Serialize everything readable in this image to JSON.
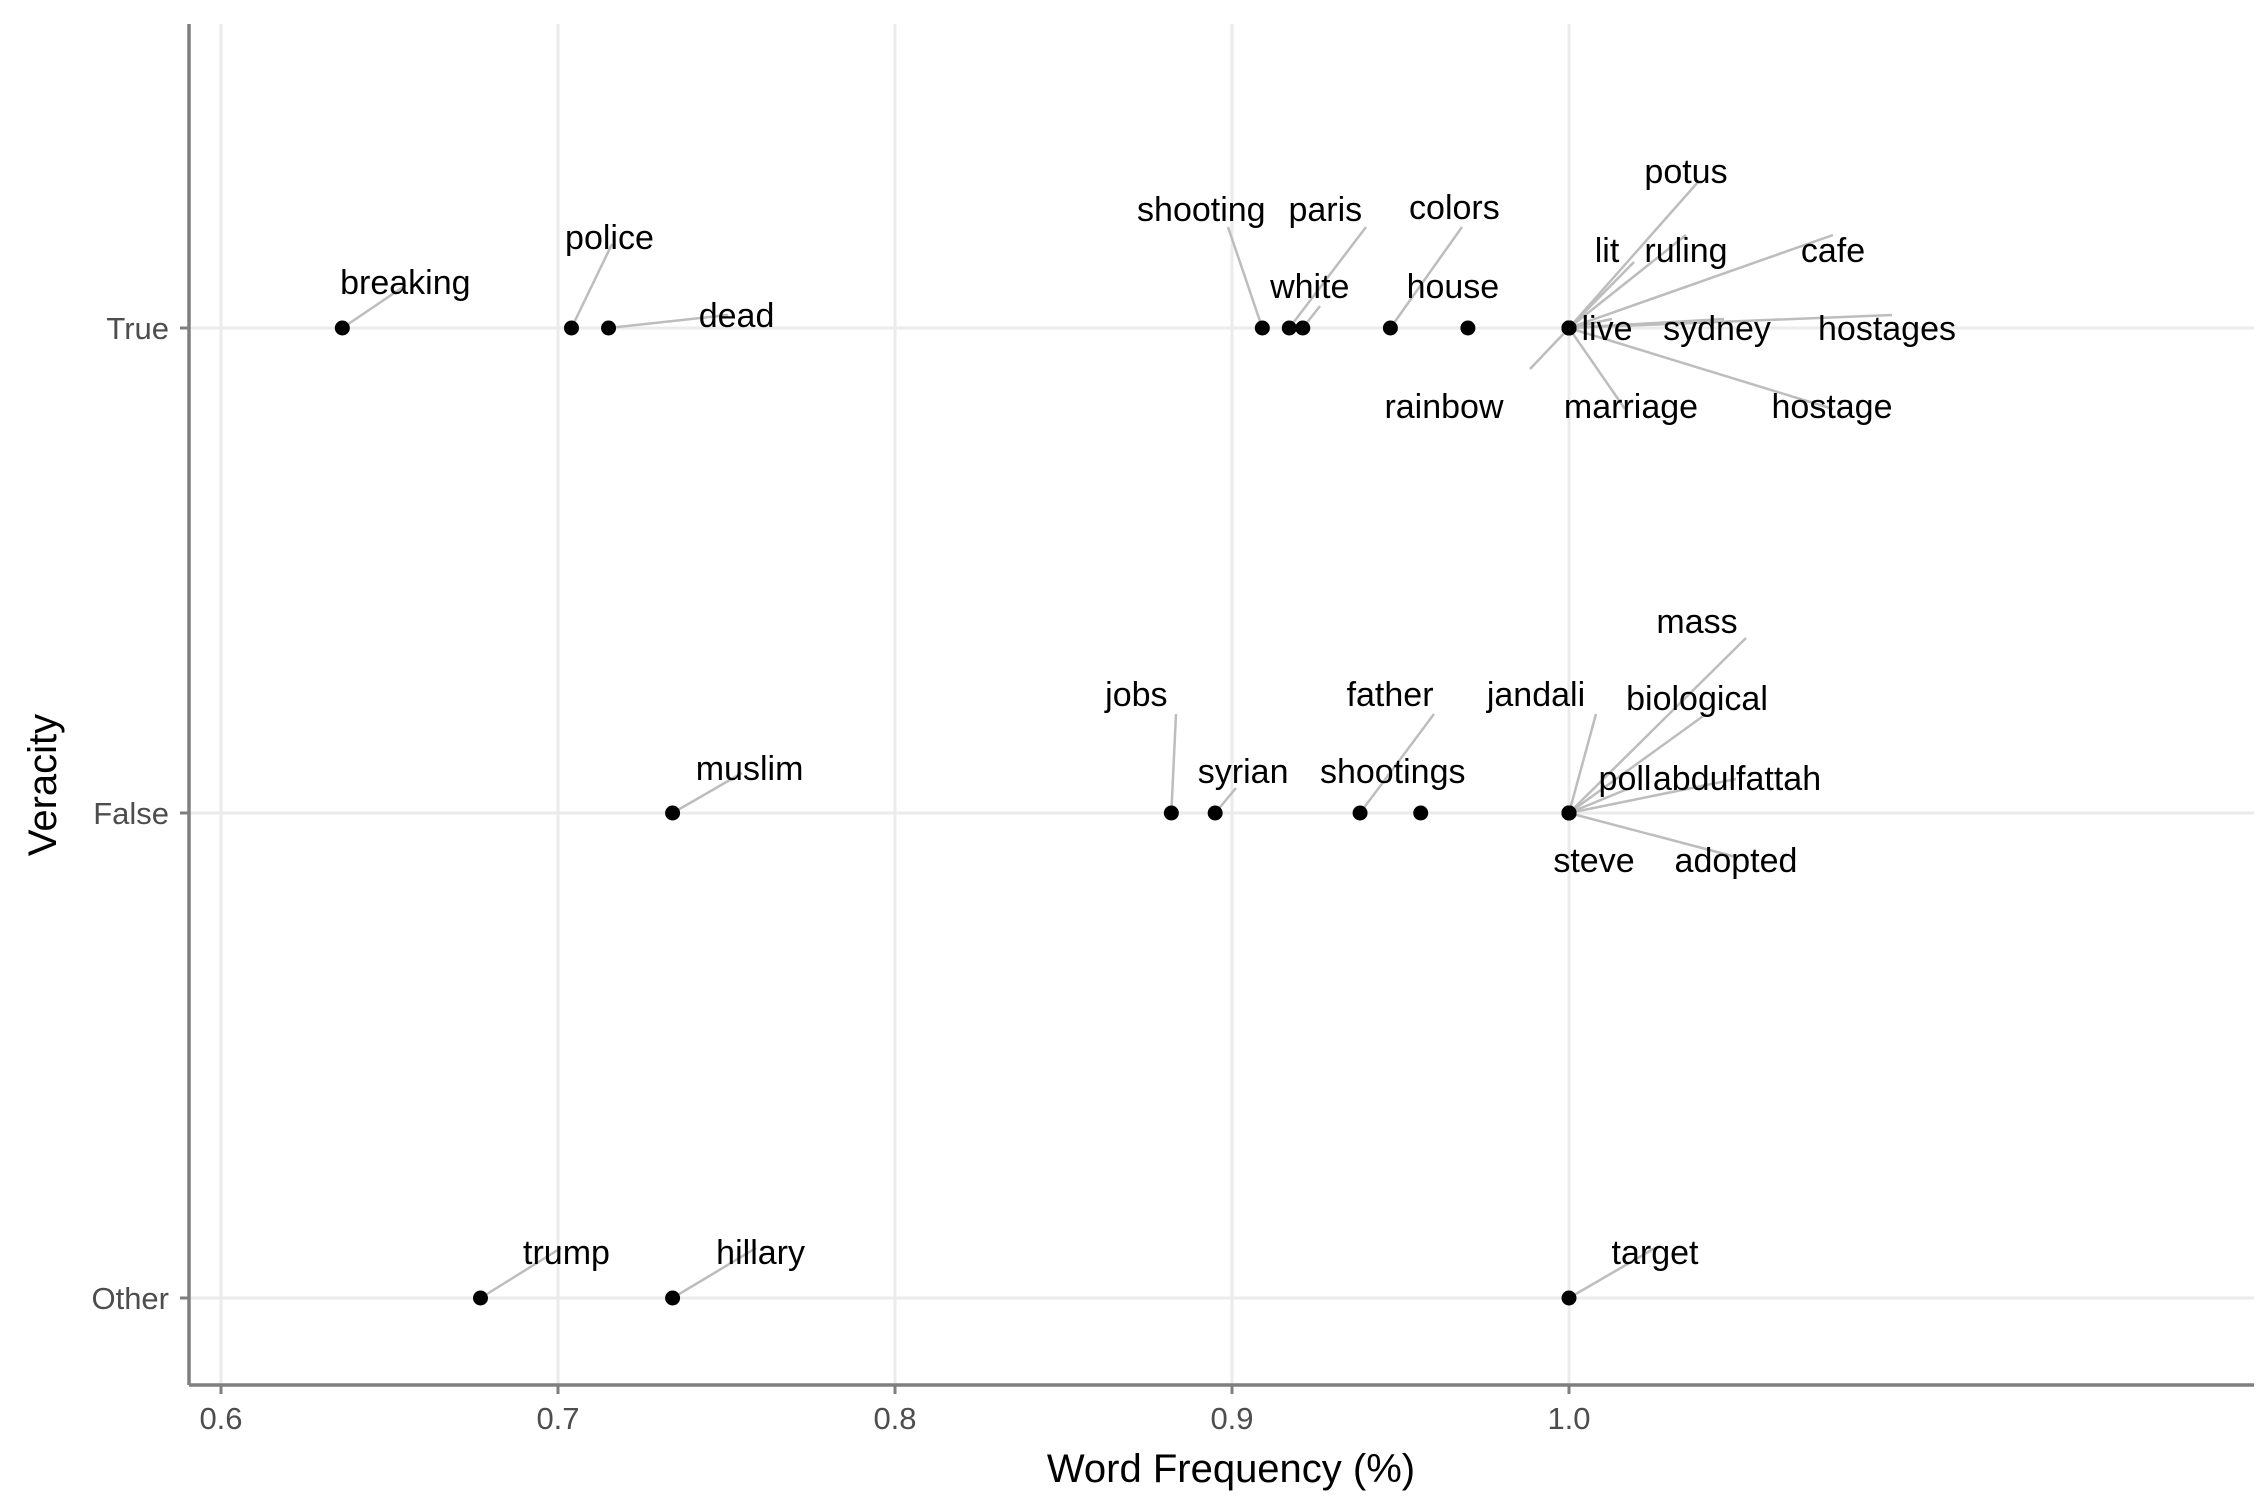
{
  "chart_data": {
    "type": "scatter",
    "xlabel": "Word Frequency (%)",
    "ylabel": "Veracity",
    "xlim": [
      0.59,
      1.2
    ],
    "x_ticks": [
      0.6,
      0.7,
      0.8,
      0.9,
      1.0
    ],
    "x_tick_labels": [
      "0.6",
      "0.7",
      "0.8",
      "0.9",
      "1.0"
    ],
    "categories": [
      "Other",
      "False",
      "True"
    ],
    "grid": true,
    "legend": "none",
    "points": [
      {
        "label": "breaking",
        "x": 0.636,
        "y": "True"
      },
      {
        "label": "police",
        "x": 0.704,
        "y": "True"
      },
      {
        "label": "dead",
        "x": 0.715,
        "y": "True"
      },
      {
        "label": "shooting",
        "x": 0.909,
        "y": "True"
      },
      {
        "label": "paris",
        "x": 0.917,
        "y": "True"
      },
      {
        "label": "white",
        "x": 0.921,
        "y": "True"
      },
      {
        "label": "colors",
        "x": 0.947,
        "y": "True"
      },
      {
        "label": "house",
        "x": 0.97,
        "y": "True"
      },
      {
        "label": "potus",
        "x": 1.0,
        "y": "True"
      },
      {
        "label": "lit",
        "x": 1.0,
        "y": "True"
      },
      {
        "label": "ruling",
        "x": 1.0,
        "y": "True"
      },
      {
        "label": "cafe",
        "x": 1.0,
        "y": "True"
      },
      {
        "label": "live",
        "x": 1.0,
        "y": "True"
      },
      {
        "label": "sydney",
        "x": 1.0,
        "y": "True"
      },
      {
        "label": "hostages",
        "x": 1.0,
        "y": "True"
      },
      {
        "label": "rainbow",
        "x": 1.0,
        "y": "True"
      },
      {
        "label": "marriage",
        "x": 1.0,
        "y": "True"
      },
      {
        "label": "hostage",
        "x": 1.0,
        "y": "True"
      },
      {
        "label": "muslim",
        "x": 0.734,
        "y": "False"
      },
      {
        "label": "jobs",
        "x": 0.882,
        "y": "False"
      },
      {
        "label": "syrian",
        "x": 0.895,
        "y": "False"
      },
      {
        "label": "father",
        "x": 0.938,
        "y": "False"
      },
      {
        "label": "shootings",
        "x": 0.956,
        "y": "False"
      },
      {
        "label": "mass",
        "x": 1.0,
        "y": "False"
      },
      {
        "label": "jandali",
        "x": 1.0,
        "y": "False"
      },
      {
        "label": "biological",
        "x": 1.0,
        "y": "False"
      },
      {
        "label": "poll",
        "x": 1.0,
        "y": "False"
      },
      {
        "label": "abdulfattah",
        "x": 1.0,
        "y": "False"
      },
      {
        "label": "steve",
        "x": 1.0,
        "y": "False"
      },
      {
        "label": "adopted",
        "x": 1.0,
        "y": "False"
      },
      {
        "label": "trump",
        "x": 0.677,
        "y": "Other"
      },
      {
        "label": "hillary",
        "x": 0.734,
        "y": "Other"
      },
      {
        "label": "target",
        "x": 1.0,
        "y": "Other"
      }
    ]
  }
}
